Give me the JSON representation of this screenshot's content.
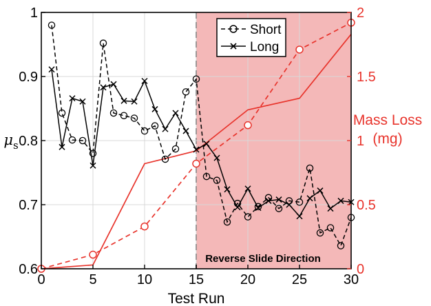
{
  "chart_data": {
    "type": "line",
    "xlabel": "Test Run",
    "ylabel_left": "μs",
    "ylabel_right_lines": [
      "Mass Loss",
      "(mg)"
    ],
    "xlim": [
      0,
      30
    ],
    "ylim_left": [
      0.6,
      1.0
    ],
    "ylim_right": [
      0,
      2
    ],
    "x_ticks": [
      "0",
      "5",
      "10",
      "15",
      "20",
      "25",
      "30"
    ],
    "y_left_ticks": [
      "0.6",
      "0.7",
      "0.8",
      "0.9",
      "1"
    ],
    "y_right_ticks": [
      "0",
      "0.5",
      "1",
      "1.5",
      "2"
    ],
    "grid": true,
    "legend_position": "top-right",
    "shaded_region": {
      "x_start": 15,
      "x_end": 30,
      "label": "Reverse Slide Direction",
      "color": "#f4b8b8"
    },
    "colors": {
      "friction": "#000000",
      "mass_loss": "#e8332b",
      "shade": "#f4b8b8"
    },
    "friction_series": [
      {
        "name": "Short",
        "linestyle": "dashed",
        "marker": "circle",
        "x": [
          1,
          2,
          3,
          4,
          5,
          6,
          7,
          8,
          9,
          10,
          11,
          12,
          13,
          14,
          15,
          16,
          17,
          18,
          19,
          20,
          21,
          22,
          23,
          24,
          25,
          26,
          27,
          28,
          29,
          30
        ],
        "y": [
          0.98,
          0.843,
          0.801,
          0.8,
          0.78,
          0.952,
          0.843,
          0.839,
          0.835,
          0.815,
          0.823,
          0.771,
          0.787,
          0.876,
          0.896,
          0.744,
          0.738,
          0.673,
          0.702,
          0.681,
          0.697,
          0.711,
          0.694,
          0.706,
          0.704,
          0.757,
          0.656,
          0.664,
          0.636,
          0.68
        ]
      },
      {
        "name": "Long",
        "linestyle": "solid",
        "marker": "x",
        "x": [
          1,
          2,
          3,
          4,
          5,
          6,
          7,
          8,
          9,
          10,
          11,
          12,
          13,
          14,
          15,
          16,
          17,
          18,
          19,
          20,
          21,
          22,
          23,
          24,
          25,
          26,
          27,
          28,
          29,
          30
        ],
        "y": [
          0.911,
          0.79,
          0.866,
          0.861,
          0.761,
          0.883,
          0.888,
          0.862,
          0.861,
          0.893,
          0.849,
          0.818,
          0.843,
          0.815,
          0.786,
          0.795,
          0.773,
          0.724,
          0.696,
          0.725,
          0.695,
          0.706,
          0.708,
          0.7,
          0.682,
          0.71,
          0.722,
          0.694,
          0.706,
          0.704
        ]
      }
    ],
    "mass_loss_series": [
      {
        "name": "Short mass loss",
        "linestyle": "dashed",
        "x": [
          0,
          5,
          10,
          15,
          20,
          25,
          30
        ],
        "y": [
          0,
          0.11,
          0.33,
          0.82,
          1.12,
          1.71,
          1.92
        ]
      },
      {
        "name": "Long mass loss",
        "linestyle": "solid",
        "x": [
          0,
          5,
          10,
          15,
          20,
          25,
          30
        ],
        "y": [
          0,
          0.03,
          0.82,
          0.92,
          1.24,
          1.33,
          1.83
        ]
      }
    ]
  }
}
